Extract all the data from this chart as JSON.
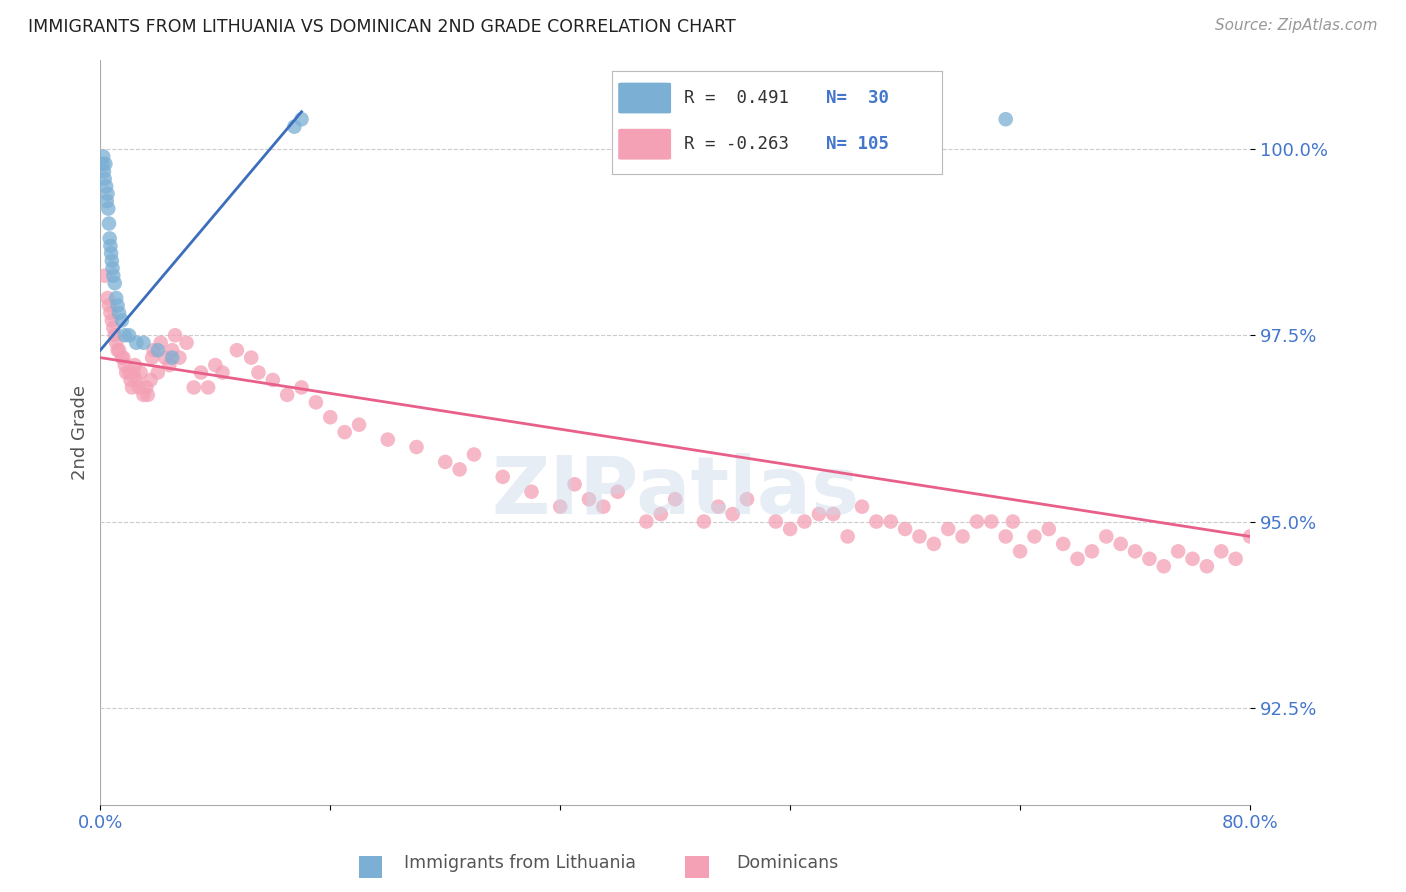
{
  "title": "IMMIGRANTS FROM LITHUANIA VS DOMINICAN 2ND GRADE CORRELATION CHART",
  "source": "Source: ZipAtlas.com",
  "ylabel": "2nd Grade",
  "y_ticks": [
    92.5,
    95.0,
    97.5,
    100.0
  ],
  "y_tick_labels": [
    "92.5%",
    "95.0%",
    "97.5%",
    "100.0%"
  ],
  "xlim": [
    0.0,
    80.0
  ],
  "ylim": [
    91.2,
    101.2
  ],
  "blue_R": 0.491,
  "blue_N": 30,
  "pink_R": -0.263,
  "pink_N": 105,
  "blue_color": "#7BAFD4",
  "pink_color": "#F4A0B5",
  "blue_line_color": "#3C6EBC",
  "pink_line_color": "#E8608A",
  "title_color": "#222222",
  "source_color": "#999999",
  "axis_label_color": "#4477CC",
  "blue_x": [
    0.15,
    0.2,
    0.25,
    0.3,
    0.35,
    0.4,
    0.45,
    0.5,
    0.55,
    0.6,
    0.65,
    0.7,
    0.75,
    0.8,
    0.85,
    0.9,
    1.0,
    1.1,
    1.2,
    1.3,
    1.5,
    1.7,
    2.0,
    2.5,
    3.0,
    4.0,
    5.0,
    13.5,
    14.0,
    63.0
  ],
  "blue_y": [
    99.8,
    99.9,
    99.7,
    99.6,
    99.8,
    99.5,
    99.3,
    99.4,
    99.2,
    99.0,
    98.8,
    98.7,
    98.6,
    98.5,
    98.4,
    98.3,
    98.2,
    98.0,
    97.9,
    97.8,
    97.7,
    97.5,
    97.5,
    97.4,
    97.4,
    97.3,
    97.2,
    100.3,
    100.4,
    100.4
  ],
  "pink_x": [
    0.3,
    0.5,
    0.6,
    0.7,
    0.8,
    0.9,
    1.0,
    1.1,
    1.2,
    1.3,
    1.5,
    1.6,
    1.7,
    1.8,
    2.0,
    2.1,
    2.2,
    2.3,
    2.4,
    2.5,
    2.7,
    2.8,
    3.0,
    3.2,
    3.3,
    3.5,
    3.6,
    3.7,
    4.0,
    4.2,
    4.5,
    4.8,
    5.0,
    5.2,
    5.5,
    6.0,
    6.5,
    7.0,
    7.5,
    8.0,
    8.5,
    9.5,
    10.5,
    11.0,
    12.0,
    13.0,
    14.0,
    15.0,
    16.0,
    17.0,
    18.0,
    20.0,
    22.0,
    24.0,
    25.0,
    26.0,
    28.0,
    30.0,
    32.0,
    33.0,
    34.0,
    35.0,
    36.0,
    38.0,
    39.0,
    40.0,
    42.0,
    43.0,
    44.0,
    45.0,
    47.0,
    48.0,
    50.0,
    52.0,
    54.0,
    56.0,
    58.0,
    60.0,
    62.0,
    63.0,
    64.0,
    65.0,
    66.0,
    67.0,
    68.0,
    69.0,
    70.0,
    72.0,
    73.0,
    74.0,
    75.0,
    76.0,
    77.0,
    78.0,
    79.0,
    80.0,
    49.0,
    51.0,
    53.0,
    55.0,
    57.0,
    59.0,
    61.0,
    63.5,
    71.0
  ],
  "pink_y": [
    98.3,
    98.0,
    97.9,
    97.8,
    97.7,
    97.6,
    97.5,
    97.4,
    97.3,
    97.3,
    97.2,
    97.2,
    97.1,
    97.0,
    97.0,
    96.9,
    96.8,
    97.0,
    97.1,
    96.9,
    96.8,
    97.0,
    96.7,
    96.8,
    96.7,
    96.9,
    97.2,
    97.3,
    97.0,
    97.4,
    97.2,
    97.1,
    97.3,
    97.5,
    97.2,
    97.4,
    96.8,
    97.0,
    96.8,
    97.1,
    97.0,
    97.3,
    97.2,
    97.0,
    96.9,
    96.7,
    96.8,
    96.6,
    96.4,
    96.2,
    96.3,
    96.1,
    96.0,
    95.8,
    95.7,
    95.9,
    95.6,
    95.4,
    95.2,
    95.5,
    95.3,
    95.2,
    95.4,
    95.0,
    95.1,
    95.3,
    95.0,
    95.2,
    95.1,
    95.3,
    95.0,
    94.9,
    95.1,
    94.8,
    95.0,
    94.9,
    94.7,
    94.8,
    95.0,
    94.8,
    94.6,
    94.8,
    94.9,
    94.7,
    94.5,
    94.6,
    94.8,
    94.6,
    94.5,
    94.4,
    94.6,
    94.5,
    94.4,
    94.6,
    94.5,
    94.8,
    95.0,
    95.1,
    95.2,
    95.0,
    94.8,
    94.9,
    95.0,
    95.0,
    94.7
  ],
  "blue_line_x0": 0.0,
  "blue_line_y0": 97.3,
  "blue_line_x1": 14.0,
  "blue_line_y1": 100.5,
  "pink_line_x0": 0.0,
  "pink_line_y0": 97.2,
  "pink_line_x1": 80.0,
  "pink_line_y1": 94.8
}
